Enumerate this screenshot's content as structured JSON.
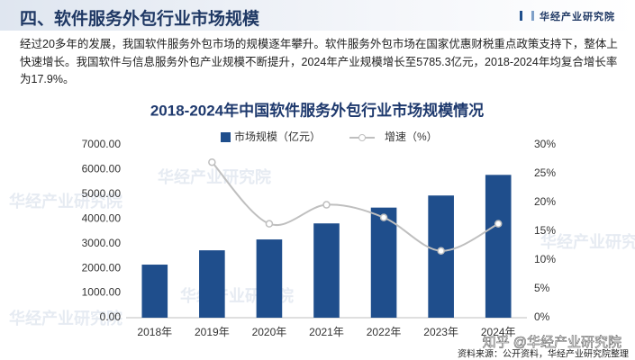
{
  "header": {
    "title": "四、软件服务外包行业市场规模",
    "brand": "华经产业研究院"
  },
  "paragraph": "经过20多年的发展，我国软件服务外包市场的规模逐年攀升。软件服务外包市场在国家优惠财税重点政策支持下，整体上快速增长。我国软件与信息服务外包产业规模不断提升，2024年产业规模增长至5785.3亿元，2018-2024年均复合增长率为17.9%。",
  "watermark": "华经产业研究院",
  "overlay": "知乎 @华经产业研究院",
  "source": "资料来源：公开资料，华经产业研究院整理",
  "chart_data": {
    "type": "bar",
    "title": "2018-2024年中国软件服务外包行业市场规模情况",
    "categories": [
      "2018年",
      "2019年",
      "2020年",
      "2021年",
      "2022年",
      "2023年",
      "2024年"
    ],
    "series": [
      {
        "name": "市场规模（亿元）",
        "type": "bar",
        "color": "#1f4e8c",
        "values": [
          2150,
          2730,
          3170,
          3820,
          4460,
          4950,
          5785.3
        ]
      },
      {
        "name": "增速（%）",
        "type": "line",
        "axis": "y2",
        "color": "#bfbfbf",
        "values": [
          null,
          27,
          16.3,
          19.6,
          17.4,
          11.6,
          16.3
        ]
      }
    ],
    "ylim": [
      0,
      7000
    ],
    "yticks": [
      {
        "value": 0,
        "label": "0.00"
      },
      {
        "value": 1000,
        "label": "1000.00"
      },
      {
        "value": 2000,
        "label": "2000.00"
      },
      {
        "value": 3000,
        "label": "3000.00"
      },
      {
        "value": 4000,
        "label": "4000.00"
      },
      {
        "value": 5000,
        "label": "5000.00"
      },
      {
        "value": 6000,
        "label": "6000.00"
      },
      {
        "value": 7000,
        "label": "7000.00"
      }
    ],
    "y2lim": [
      0,
      30
    ],
    "y2ticks": [
      {
        "value": 0,
        "label": "0%"
      },
      {
        "value": 5,
        "label": "5%"
      },
      {
        "value": 10,
        "label": "10%"
      },
      {
        "value": 15,
        "label": "15%"
      },
      {
        "value": 20,
        "label": "20%"
      },
      {
        "value": 25,
        "label": "25%"
      },
      {
        "value": 30,
        "label": "30%"
      }
    ],
    "legend": "top"
  }
}
